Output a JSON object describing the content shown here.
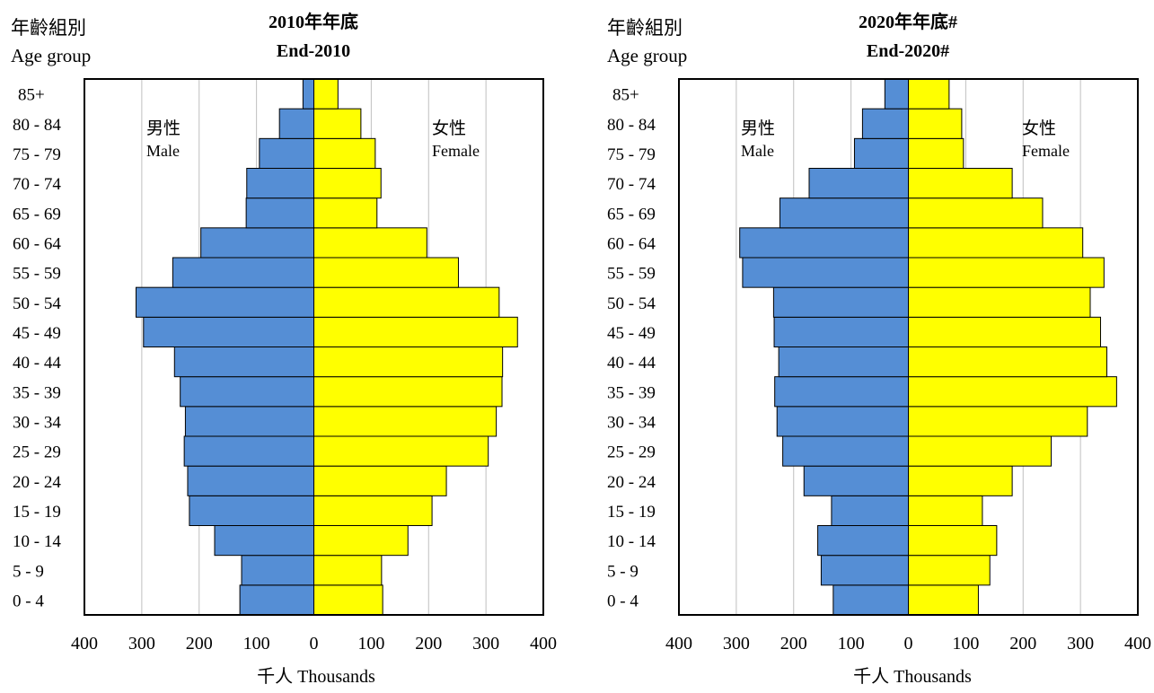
{
  "colors": {
    "male": "#558ed5",
    "female": "#ffff00",
    "grid": "#bfbfbf",
    "frame": "#000000"
  },
  "age_group_label_zh": "年齡組別",
  "age_group_label_en": "Age group",
  "male_label_zh": "男性",
  "male_label_en": "Male",
  "female_label_zh": "女性",
  "female_label_en": "Female",
  "x_axis_label": "千人  Thousands",
  "chart_data": [
    {
      "type": "bar",
      "orientation": "horizontal",
      "subtype": "population-pyramid",
      "title": "2010年年底",
      "subtitle": "End-2010",
      "ylabel": "年齡組別 Age group",
      "xlabel": "千人  Thousands",
      "xlim": [
        -400,
        400
      ],
      "x_ticks": [
        "400",
        "300",
        "200",
        "100",
        "0",
        "100",
        "200",
        "300",
        "400"
      ],
      "categories": [
        "0 - 4",
        "5 - 9",
        "10 - 14",
        "15 - 19",
        "20 - 24",
        "25 - 29",
        "30 - 34",
        "35 - 39",
        "40 - 44",
        "45 - 49",
        "50 - 54",
        "55 - 59",
        "60 - 64",
        "65 - 69",
        "70 - 74",
        "75 - 79",
        "80 - 84",
        "85+"
      ],
      "series": [
        {
          "name": "男性 Male",
          "values": [
            129,
            126,
            173,
            217,
            220,
            226,
            224,
            233,
            243,
            297,
            310,
            246,
            197,
            118,
            117,
            95,
            60,
            19
          ]
        },
        {
          "name": "女性 Female",
          "values": [
            120,
            118,
            164,
            206,
            231,
            304,
            318,
            328,
            329,
            355,
            323,
            252,
            197,
            110,
            117,
            107,
            82,
            42
          ]
        }
      ],
      "grid": true
    },
    {
      "type": "bar",
      "orientation": "horizontal",
      "subtype": "population-pyramid",
      "title": "2020年年底#",
      "subtitle": "End-2020#",
      "ylabel": "年齡組別 Age group",
      "xlabel": "千人  Thousands",
      "xlim": [
        -400,
        400
      ],
      "x_ticks": [
        "400",
        "300",
        "200",
        "100",
        "0",
        "100",
        "200",
        "300",
        "400"
      ],
      "categories": [
        "0 - 4",
        "5 - 9",
        "10 - 14",
        "15 - 19",
        "20 - 24",
        "25 - 29",
        "30 - 34",
        "35 - 39",
        "40 - 44",
        "45 - 49",
        "50 - 54",
        "55 - 59",
        "60 - 64",
        "65 - 69",
        "70 - 74",
        "75 - 79",
        "80 - 84",
        "85+"
      ],
      "series": [
        {
          "name": "男性 Male",
          "values": [
            131,
            152,
            158,
            134,
            182,
            219,
            229,
            233,
            226,
            234,
            235,
            289,
            294,
            224,
            173,
            94,
            80,
            41
          ]
        },
        {
          "name": "女性 Female",
          "values": [
            122,
            142,
            154,
            129,
            181,
            249,
            312,
            363,
            346,
            335,
            317,
            341,
            304,
            234,
            181,
            96,
            93,
            71
          ]
        }
      ],
      "grid": true
    }
  ]
}
